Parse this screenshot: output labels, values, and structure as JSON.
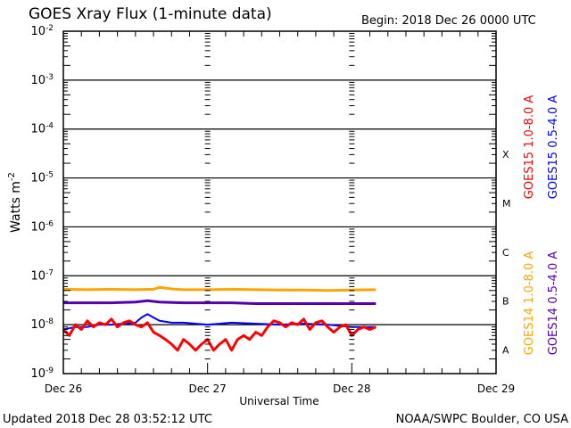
{
  "chart_data": {
    "type": "line",
    "title": "GOES Xray Flux (1-minute data)",
    "begin_label": "Begin:  2018 Dec 26 0000 UTC",
    "xlabel": "Universal Time",
    "ylabel": "Watts m",
    "ylabel_exp": "-2",
    "x_unit": "hours since 2018 Dec 26 0000 UTC",
    "xlim": [
      0,
      72
    ],
    "ylim_log10": [
      -9,
      -2
    ],
    "x_ticks": [
      {
        "h": 0,
        "label": "Dec 26"
      },
      {
        "h": 24,
        "label": "Dec 27"
      },
      {
        "h": 48,
        "label": "Dec 28"
      },
      {
        "h": 72,
        "label": "Dec 29"
      }
    ],
    "y_ticks": [
      {
        "exp": -2,
        "base": "10",
        "sup": "-2"
      },
      {
        "exp": -3,
        "base": "10",
        "sup": "-3"
      },
      {
        "exp": -4,
        "base": "10",
        "sup": "-4"
      },
      {
        "exp": -5,
        "base": "10",
        "sup": "-5"
      },
      {
        "exp": -6,
        "base": "10",
        "sup": "-6"
      },
      {
        "exp": -7,
        "base": "10",
        "sup": "-7"
      },
      {
        "exp": -8,
        "base": "10",
        "sup": "-8"
      },
      {
        "exp": -9,
        "base": "10",
        "sup": "-9"
      }
    ],
    "flare_classes": [
      {
        "label": "X",
        "exp": -4
      },
      {
        "label": "M",
        "exp": -5
      },
      {
        "label": "C",
        "exp": -6
      },
      {
        "label": "B",
        "exp": -7
      },
      {
        "label": "A",
        "exp": -8
      }
    ],
    "grid": "horizontal lines at each decade",
    "legend_placement": "right-vertical",
    "series": [
      {
        "name": "GOES15 1.0-8.0 A",
        "color": "#ff0000",
        "x": [
          0,
          1,
          2,
          3,
          4,
          5,
          6,
          7,
          8,
          9,
          10,
          11,
          12,
          13,
          14,
          15,
          16,
          17,
          18,
          19,
          20,
          21,
          22,
          23,
          24,
          25,
          26,
          27,
          28,
          29,
          30,
          31,
          32,
          33,
          34,
          35,
          36,
          37,
          38,
          39,
          40,
          41,
          42,
          43,
          44,
          45,
          46,
          47,
          48,
          49,
          50,
          51,
          52
        ],
        "values": [
          8e-09,
          6e-09,
          1e-08,
          8e-09,
          1.2e-08,
          9e-09,
          1.1e-08,
          1e-08,
          1.3e-08,
          9e-09,
          1.1e-08,
          1.2e-08,
          1e-08,
          9e-09,
          1.1e-08,
          7e-09,
          6e-09,
          5e-09,
          4e-09,
          3e-09,
          5e-09,
          4e-09,
          3e-09,
          4e-09,
          5e-09,
          3e-09,
          4e-09,
          5e-09,
          3e-09,
          5e-09,
          6e-09,
          5e-09,
          7e-09,
          6e-09,
          9e-09,
          1.2e-08,
          1.1e-08,
          9e-09,
          1.1e-08,
          1e-08,
          1.3e-08,
          8e-09,
          1.1e-08,
          1.2e-08,
          9e-09,
          7e-09,
          9e-09,
          1e-08,
          6e-09,
          8e-09,
          9e-09,
          8e-09,
          9e-09
        ]
      },
      {
        "name": "GOES15 0.5-4.0 A",
        "color": "#0000ff",
        "x": [
          0,
          2,
          4,
          6,
          8,
          10,
          12,
          13,
          14,
          15,
          16,
          18,
          20,
          24,
          28,
          32,
          36,
          40,
          44,
          48,
          50,
          52
        ],
        "values": [
          8e-09,
          9e-09,
          9e-09,
          1e-08,
          1e-08,
          1.05e-08,
          1.1e-08,
          1.4e-08,
          1.65e-08,
          1.4e-08,
          1.2e-08,
          1.1e-08,
          1.1e-08,
          1e-08,
          1.1e-08,
          1.05e-08,
          1e-08,
          1.05e-08,
          1e-08,
          9e-09,
          9e-09,
          9e-09
        ]
      },
      {
        "name": "GOES14 1.0-8.0 A",
        "color": "#ffa500",
        "x": [
          0,
          4,
          8,
          12,
          15,
          16,
          18,
          20,
          24,
          28,
          32,
          36,
          40,
          44,
          48,
          52
        ],
        "values": [
          5.3e-08,
          5.2e-08,
          5.3e-08,
          5.2e-08,
          5.3e-08,
          5.8e-08,
          5.4e-08,
          5.2e-08,
          5.2e-08,
          5.3e-08,
          5.2e-08,
          5.1e-08,
          5.1e-08,
          5e-08,
          5.1e-08,
          5.2e-08
        ]
      },
      {
        "name": "GOES14 0.5-4.0 A",
        "color": "#5500aa",
        "x": [
          0,
          4,
          8,
          12,
          14,
          16,
          20,
          24,
          28,
          32,
          36,
          40,
          44,
          48,
          52
        ],
        "values": [
          2.8e-08,
          2.8e-08,
          2.8e-08,
          2.9e-08,
          3.1e-08,
          2.9e-08,
          2.8e-08,
          2.8e-08,
          2.8e-08,
          2.7e-08,
          2.7e-08,
          2.7e-08,
          2.7e-08,
          2.7e-08,
          2.7e-08
        ]
      }
    ]
  },
  "footer": {
    "updated": "Updated 2018 Dec 28 03:52:12 UTC",
    "source": "NOAA/SWPC Boulder, CO USA"
  }
}
